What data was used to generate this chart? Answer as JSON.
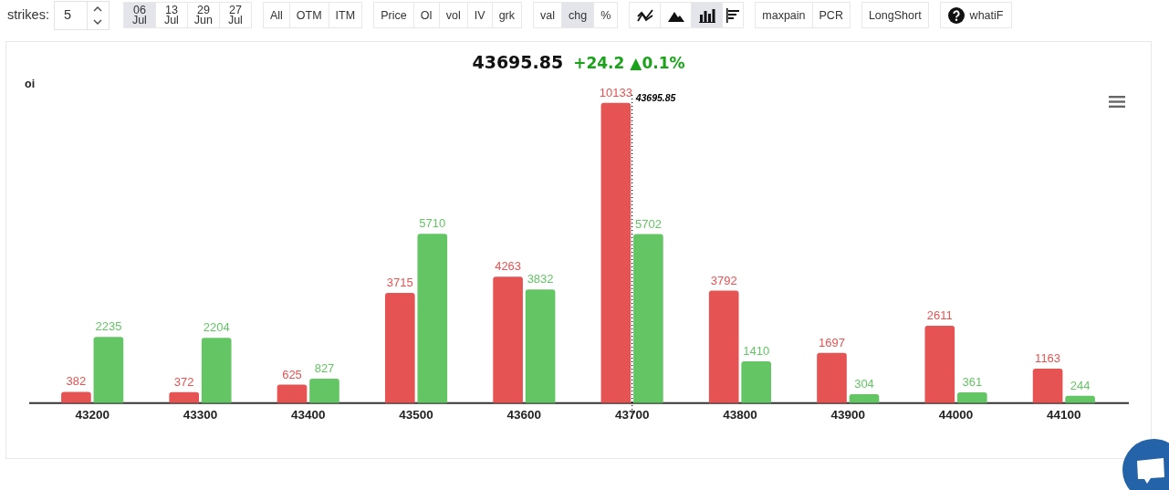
{
  "chart_data": {
    "type": "bar",
    "title": "43695.85",
    "subtitle": "+24.2 ▲0.1%",
    "ylabel": "oi",
    "categories": [
      "43200",
      "43300",
      "43400",
      "43500",
      "43600",
      "43700",
      "43800",
      "43900",
      "44000",
      "44100"
    ],
    "series": [
      {
        "color": "#e55353",
        "values": [
          382,
          372,
          625,
          3715,
          4263,
          10133,
          3792,
          1697,
          2611,
          1163
        ]
      },
      {
        "color": "#64c564",
        "values": [
          2235,
          2204,
          827,
          5710,
          3832,
          5702,
          1410,
          304,
          361,
          244
        ]
      }
    ],
    "data_labels": true,
    "annotations": [
      "strikes:",
      "5",
      "06 Jul",
      "13 Jul",
      "29 Jun",
      "27 Jul",
      "All",
      "OTM",
      "ITM",
      "Price",
      "OI",
      "vol",
      "IV",
      "grk",
      "val",
      "chg",
      "%",
      "maxpain",
      "PCR",
      "LongShort",
      "whatiF",
      "43695.85"
    ]
  }
}
